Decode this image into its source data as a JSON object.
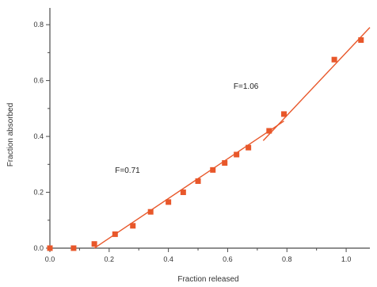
{
  "chart_data": {
    "type": "scatter",
    "xlabel": "Fraction released",
    "ylabel": "Fraction absorbed",
    "xlim": [
      0.0,
      1.08
    ],
    "ylim": [
      0.0,
      0.86
    ],
    "xticks": [
      {
        "value": 0.0,
        "label": "0.0"
      },
      {
        "value": 0.2,
        "label": "0.2"
      },
      {
        "value": 0.4,
        "label": "0.4"
      },
      {
        "value": 0.6,
        "label": "0.6"
      },
      {
        "value": 0.8,
        "label": "0.8"
      },
      {
        "value": 1.0,
        "label": "1.0"
      }
    ],
    "yticks": [
      {
        "value": 0.0,
        "label": "0.0"
      },
      {
        "value": 0.2,
        "label": "0.2"
      },
      {
        "value": 0.4,
        "label": "0.4"
      },
      {
        "value": 0.6,
        "label": "0.6"
      },
      {
        "value": 0.8,
        "label": "0.8"
      }
    ],
    "grid": false,
    "color": "#e8572a",
    "series": [
      {
        "type": "scatter",
        "points": [
          {
            "x": 0.0,
            "y": 0.0
          },
          {
            "x": 0.08,
            "y": 0.0
          },
          {
            "x": 0.15,
            "y": 0.015
          },
          {
            "x": 0.22,
            "y": 0.05
          },
          {
            "x": 0.28,
            "y": 0.08
          },
          {
            "x": 0.34,
            "y": 0.13
          },
          {
            "x": 0.4,
            "y": 0.165
          },
          {
            "x": 0.45,
            "y": 0.2
          },
          {
            "x": 0.5,
            "y": 0.24
          },
          {
            "x": 0.55,
            "y": 0.28
          },
          {
            "x": 0.59,
            "y": 0.305
          },
          {
            "x": 0.63,
            "y": 0.335
          },
          {
            "x": 0.67,
            "y": 0.36
          },
          {
            "x": 0.74,
            "y": 0.42
          },
          {
            "x": 0.79,
            "y": 0.48
          },
          {
            "x": 0.96,
            "y": 0.675
          },
          {
            "x": 1.05,
            "y": 0.745
          }
        ]
      }
    ],
    "fit_lines": [
      {
        "x": [
          0.15,
          0.79
        ],
        "y": [
          0.0,
          0.455
        ]
      },
      {
        "x": [
          0.72,
          1.08
        ],
        "y": [
          0.385,
          0.79
        ]
      }
    ],
    "annotations": [
      {
        "text": "F=0.71",
        "x": 0.22,
        "y": 0.27
      },
      {
        "text": "F=1.06",
        "x": 0.62,
        "y": 0.57
      }
    ]
  }
}
